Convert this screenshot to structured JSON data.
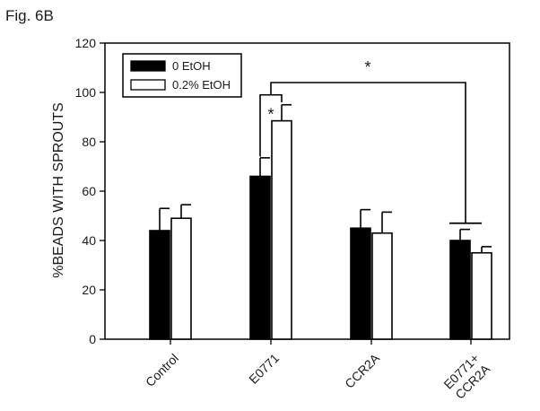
{
  "figure_label": "Fig. 6B",
  "chart_data": {
    "type": "bar",
    "title": "",
    "xlabel": "",
    "ylabel": "%BEADS WITH SPROUTS",
    "ylim": [
      0,
      120
    ],
    "yticks": [
      0,
      20,
      40,
      60,
      80,
      100,
      120
    ],
    "categories": [
      "Control",
      "E0771",
      "CCR2A",
      "E0771+ CCR2A"
    ],
    "series": [
      {
        "name": "0 EtOH",
        "color": "#000000",
        "values": [
          44,
          66,
          45,
          40
        ],
        "errors": [
          9,
          7.5,
          7.5,
          4.5
        ]
      },
      {
        "name": "0.2% EtOH",
        "color": "#ffffff",
        "values": [
          49,
          88.5,
          43,
          35
        ],
        "errors": [
          5.5,
          6.5,
          8.5,
          2.5
        ]
      }
    ],
    "legend_position": "top-left",
    "grid": false,
    "annotations": [
      "*",
      "*"
    ]
  }
}
